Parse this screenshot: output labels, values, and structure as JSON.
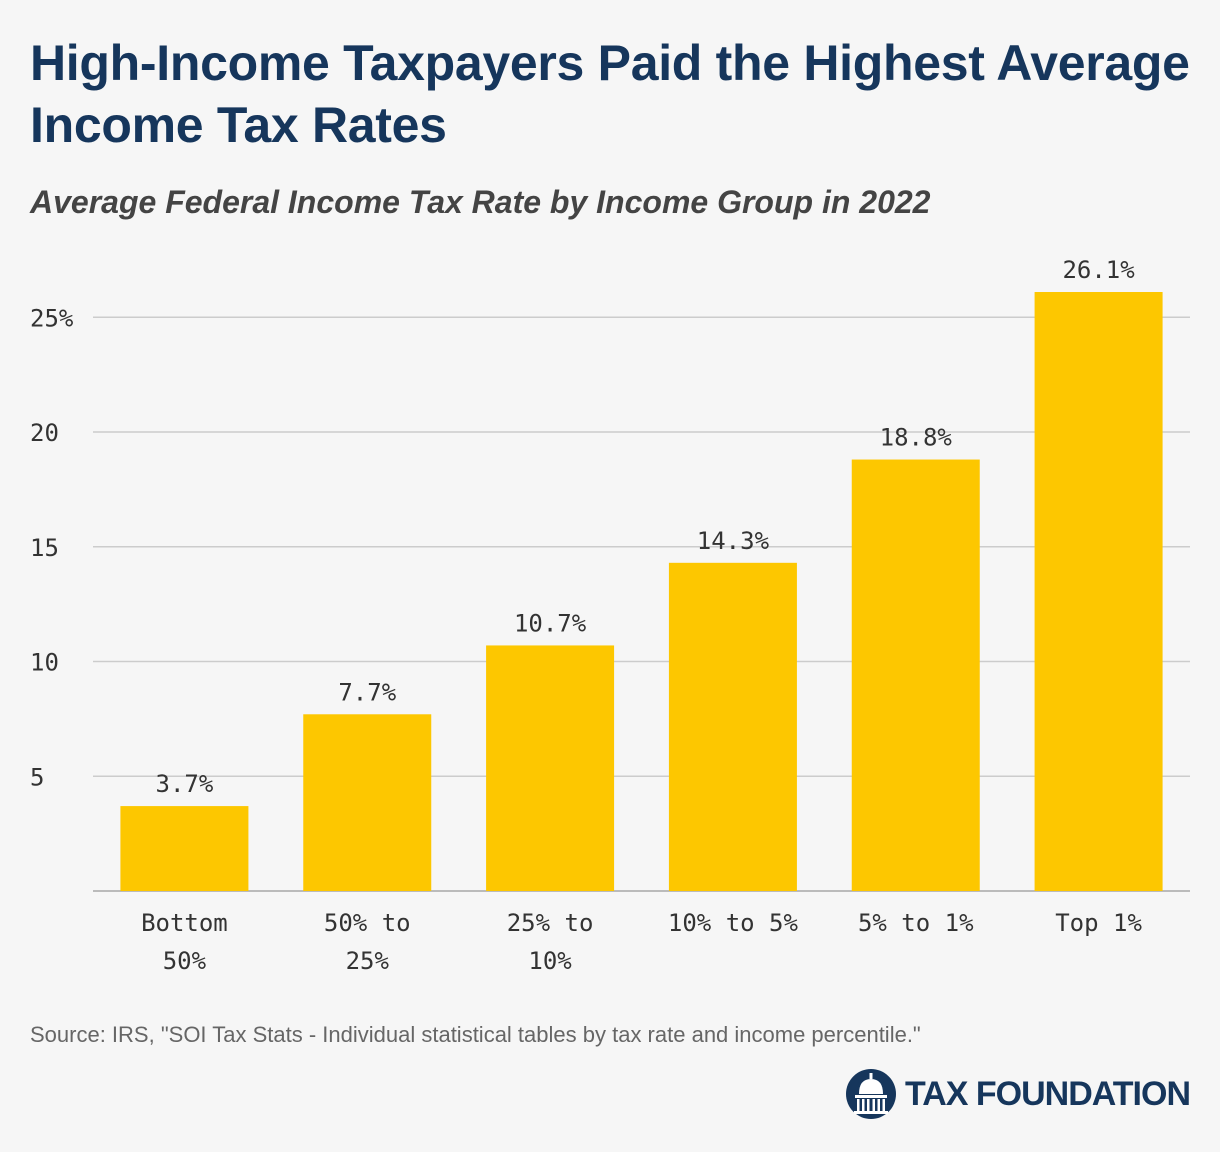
{
  "title": "High-Income Taxpayers Paid the Highest Average Income Tax Rates",
  "subtitle": "Average Federal Income Tax Rate by Income Group in 2022",
  "source": "Source: IRS, \"SOI Tax Stats - Individual statistical tables by tax rate and income percentile.\"",
  "logo": {
    "text": "TAX FOUNDATION",
    "icon": "capitol-dome-icon"
  },
  "colors": {
    "bar": "#fdc700",
    "title": "#16365c",
    "grid": "#cccccc",
    "axis": "#bbbbbb",
    "text": "#333333"
  },
  "chart_data": {
    "type": "bar",
    "title": "High-Income Taxpayers Paid the Highest Average Income Tax Rates",
    "subtitle": "Average Federal Income Tax Rate by Income Group in 2022",
    "xlabel": "",
    "ylabel": "",
    "categories": [
      [
        "Bottom",
        "50%"
      ],
      [
        "50% to",
        "25%"
      ],
      [
        "25% to",
        "10%"
      ],
      [
        "10% to 5%"
      ],
      [
        "5% to 1%"
      ],
      [
        "Top 1%"
      ]
    ],
    "values": [
      3.7,
      7.7,
      10.7,
      14.3,
      18.8,
      26.1
    ],
    "value_labels": [
      "3.7%",
      "7.7%",
      "10.7%",
      "14.3%",
      "18.8%",
      "26.1%"
    ],
    "yticks": [
      5,
      10,
      15,
      20,
      25
    ],
    "ytick_labels": [
      "5",
      "10",
      "15",
      "20",
      "25%"
    ],
    "ylim": [
      0,
      27
    ],
    "grid": true
  }
}
